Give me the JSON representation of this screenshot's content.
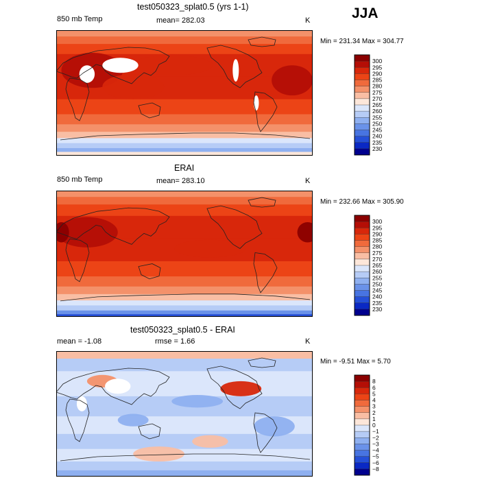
{
  "season": "JJA",
  "chart_data": [
    {
      "type": "heatmap",
      "title": "test050323_splat0.5 (yrs 1-1)",
      "variable": "850 mb Temp",
      "mean_label": "mean= 282.03",
      "units": "K",
      "min_max_label": "Min = 231.34  Max = 304.77",
      "min": 231.34,
      "max": 304.77,
      "mean": 282.03,
      "colorbar_levels": [
        "300",
        "295",
        "290",
        "285",
        "280",
        "275",
        "270",
        "265",
        "260",
        "255",
        "250",
        "245",
        "240",
        "235",
        "230"
      ],
      "colorbar_colors": [
        "#8b0000",
        "#b40e06",
        "#d8270b",
        "#ec4416",
        "#f06a3c",
        "#f4916a",
        "#f9bea4",
        "#fde7da",
        "#dbe6fb",
        "#b6ccf6",
        "#8fb0f0",
        "#6a92e9",
        "#4874e1",
        "#254fd7",
        "#0a28c4",
        "#00008e"
      ],
      "grid": false
    },
    {
      "type": "heatmap",
      "title": "ERAI",
      "variable": "850 mb Temp",
      "mean_label": "mean= 283.10",
      "units": "K",
      "min_max_label": "Min = 232.66  Max = 305.90",
      "min": 232.66,
      "max": 305.9,
      "mean": 283.1,
      "colorbar_levels": [
        "300",
        "295",
        "290",
        "285",
        "280",
        "275",
        "270",
        "265",
        "260",
        "255",
        "250",
        "245",
        "240",
        "235",
        "230"
      ],
      "colorbar_colors": [
        "#8b0000",
        "#b40e06",
        "#d8270b",
        "#ec4416",
        "#f06a3c",
        "#f4916a",
        "#f9bea4",
        "#fde7da",
        "#dbe6fb",
        "#b6ccf6",
        "#8fb0f0",
        "#6a92e9",
        "#4874e1",
        "#254fd7",
        "#0a28c4",
        "#00008e"
      ],
      "grid": false
    },
    {
      "type": "heatmap",
      "title": "test050323_splat0.5 - ERAI",
      "mean_label": "mean =   -1.08",
      "rmse_label": "rmse =   1.66",
      "units": "K",
      "min_max_label": "Min =  -9.51  Max =    5.70",
      "min": -9.51,
      "max": 5.7,
      "mean": -1.08,
      "rmse": 1.66,
      "colorbar_levels": [
        "8",
        "6",
        "5",
        "4",
        "3",
        "2",
        "1",
        "0",
        "−1",
        "−2",
        "−3",
        "−4",
        "−5",
        "−6",
        "−8"
      ],
      "colorbar_colors": [
        "#8b0000",
        "#b40e06",
        "#d8270b",
        "#ec4416",
        "#f06a3c",
        "#f4916a",
        "#f9bea4",
        "#fde7da",
        "#dbe6fb",
        "#b6ccf6",
        "#8fb0f0",
        "#6a92e9",
        "#4874e1",
        "#254fd7",
        "#0a28c4",
        "#00008e"
      ],
      "grid": false
    }
  ]
}
